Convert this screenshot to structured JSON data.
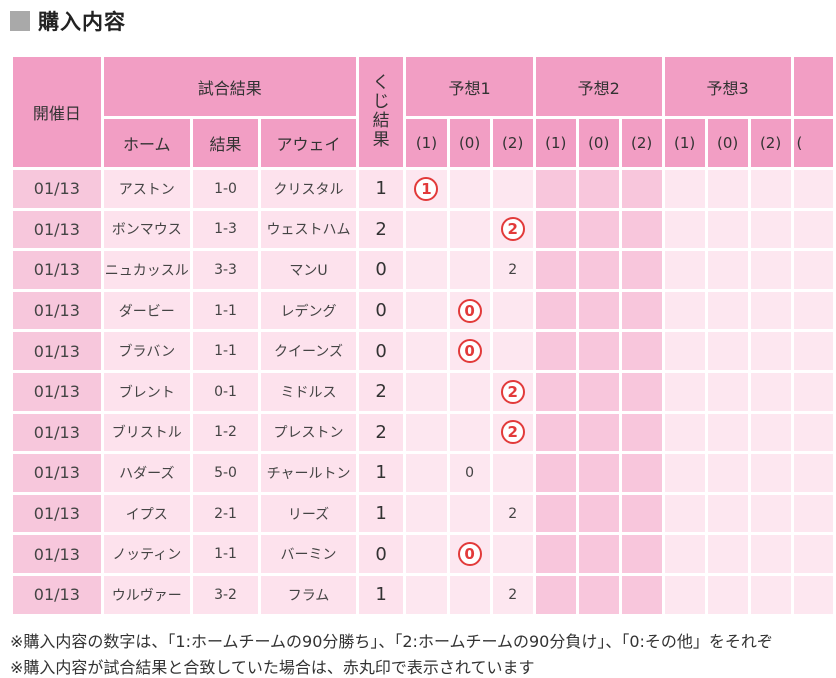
{
  "heading": "購入内容",
  "table": {
    "headers": {
      "date": "開催日",
      "match_result": "試合結果",
      "home": "ホーム",
      "result": "結果",
      "away": "アウェイ",
      "kuji": "くじ結果",
      "yosou": [
        "予想1",
        "予想2",
        "予想3"
      ],
      "picks": [
        "(1)",
        "(0)",
        "(2)"
      ],
      "partial_fourth": "("
    },
    "rows": [
      {
        "date": "01/13",
        "home": "アストン",
        "score": "1-0",
        "away": "クリスタル",
        "kuji": "1",
        "pick_col": 0,
        "pick_val": "1",
        "hit": true
      },
      {
        "date": "01/13",
        "home": "ボンマウス",
        "score": "1-3",
        "away": "ウェストハム",
        "kuji": "2",
        "pick_col": 2,
        "pick_val": "2",
        "hit": true
      },
      {
        "date": "01/13",
        "home": "ニュカッスル",
        "score": "3-3",
        "away": "マンU",
        "kuji": "0",
        "pick_col": 2,
        "pick_val": "2",
        "hit": false
      },
      {
        "date": "01/13",
        "home": "ダービー",
        "score": "1-1",
        "away": "レデング",
        "kuji": "0",
        "pick_col": 1,
        "pick_val": "0",
        "hit": true
      },
      {
        "date": "01/13",
        "home": "ブラバン",
        "score": "1-1",
        "away": "クイーンズ",
        "kuji": "0",
        "pick_col": 1,
        "pick_val": "0",
        "hit": true
      },
      {
        "date": "01/13",
        "home": "ブレント",
        "score": "0-1",
        "away": "ミドルス",
        "kuji": "2",
        "pick_col": 2,
        "pick_val": "2",
        "hit": true
      },
      {
        "date": "01/13",
        "home": "ブリストル",
        "score": "1-2",
        "away": "プレストン",
        "kuji": "2",
        "pick_col": 2,
        "pick_val": "2",
        "hit": true
      },
      {
        "date": "01/13",
        "home": "ハダーズ",
        "score": "5-0",
        "away": "チャールトン",
        "kuji": "1",
        "pick_col": 1,
        "pick_val": "0",
        "hit": false
      },
      {
        "date": "01/13",
        "home": "イプス",
        "score": "2-1",
        "away": "リーズ",
        "kuji": "1",
        "pick_col": 2,
        "pick_val": "2",
        "hit": false
      },
      {
        "date": "01/13",
        "home": "ノッティン",
        "score": "1-1",
        "away": "バーミン",
        "kuji": "0",
        "pick_col": 1,
        "pick_val": "0",
        "hit": true
      },
      {
        "date": "01/13",
        "home": "ウルヴァー",
        "score": "3-2",
        "away": "フラム",
        "kuji": "1",
        "pick_col": 2,
        "pick_val": "2",
        "hit": false
      }
    ]
  },
  "notes": [
    "※購入内容の数字は、「1:ホームチームの90分勝ち」、「2:ホームチームの90分負け」、「0:その他」をそれぞ",
    "※購入内容が試合結果と合致していた場合は、赤丸印で表示されています"
  ],
  "colors": {
    "header": "#f29ec4",
    "date_cell": "#f7c7dc",
    "cell": "#fde2ed",
    "hit_circle": "#e23a3a"
  }
}
